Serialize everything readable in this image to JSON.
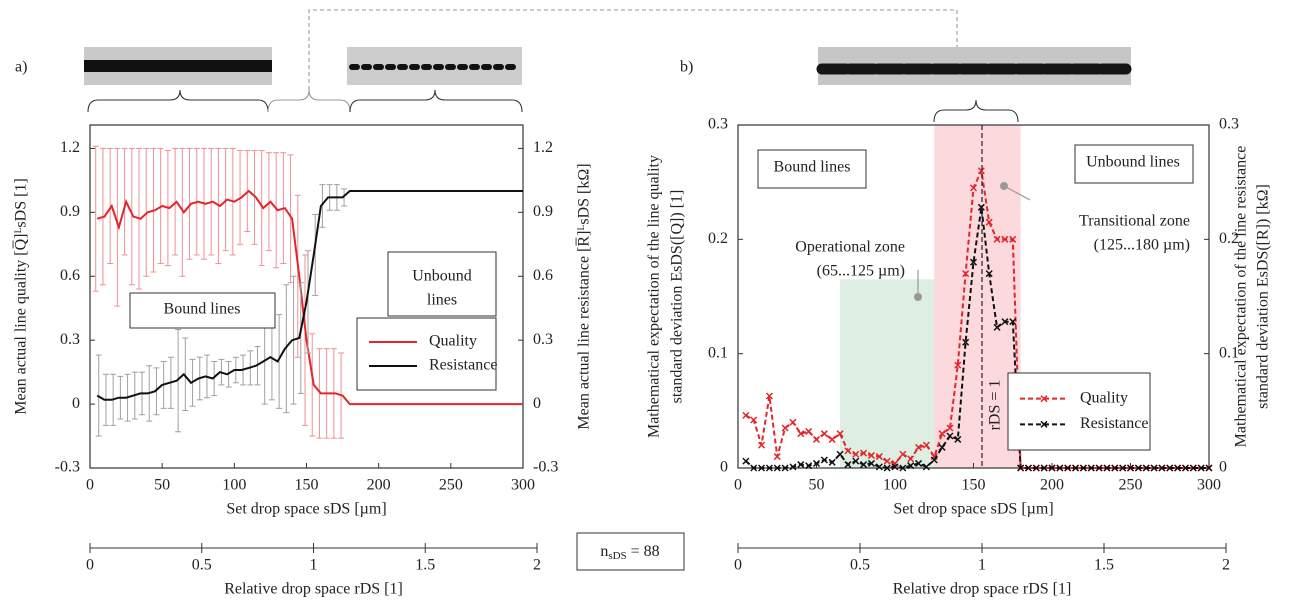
{
  "chart_data": [
    {
      "type": "line",
      "panel_label": "a)",
      "x": [
        5,
        10,
        15,
        20,
        25,
        30,
        35,
        40,
        45,
        50,
        55,
        60,
        65,
        70,
        75,
        80,
        85,
        90,
        95,
        100,
        105,
        110,
        115,
        120,
        125,
        130,
        135,
        140,
        145,
        150,
        155,
        160,
        165,
        170,
        175,
        180,
        300
      ],
      "xlim": [
        0,
        300
      ],
      "xticks": [
        0,
        50,
        100,
        150,
        200,
        250,
        300
      ],
      "xlabel": "Set drop space sDS [µm]",
      "x2lim": [
        0,
        2
      ],
      "x2ticks": [
        0,
        0.5,
        1,
        1.5,
        2
      ],
      "x2label": "Relative drop space rDS [1]",
      "ylim": [
        -0.3,
        1.31
      ],
      "yticks": [
        -0.3,
        0,
        0.3,
        0.6,
        0.9,
        1.2
      ],
      "ylabel": "Mean actual line quality [Q̅]ᴸsDS [1]",
      "y2lim": [
        -0.3,
        1.31
      ],
      "y2ticks": [
        -0.3,
        0,
        0.3,
        0.6,
        0.9,
        1.2
      ],
      "y2label": "Mean actual line resistance [R̅]ᴸsDS [kΩ]",
      "legend": "right",
      "series": [
        {
          "name": "Quality",
          "color": "#e3262b",
          "error_color": "#f09090",
          "values": [
            0.87,
            0.88,
            0.93,
            0.83,
            0.95,
            0.88,
            0.87,
            0.9,
            0.91,
            0.93,
            0.92,
            0.95,
            0.9,
            0.94,
            0.95,
            0.94,
            0.95,
            0.93,
            0.96,
            0.95,
            0.97,
            1.0,
            0.97,
            0.92,
            0.95,
            0.91,
            0.92,
            0.87,
            0.6,
            0.3,
            0.09,
            0.05,
            0.05,
            0.05,
            0.04,
            0,
            0
          ],
          "errors": [
            0.34,
            0.32,
            0.27,
            0.37,
            0.25,
            0.32,
            0.33,
            0.3,
            0.29,
            0.27,
            0.27,
            0.25,
            0.3,
            0.26,
            0.25,
            0.26,
            0.25,
            0.27,
            0.24,
            0.25,
            0.22,
            0.19,
            0.22,
            0.27,
            0.23,
            0.27,
            0.26,
            0.3,
            0.38,
            0.4,
            0.24,
            0.21,
            0.21,
            0.21,
            0.2,
            null,
            null
          ]
        },
        {
          "name": "Resistance",
          "color": "#111111",
          "error_color": "#a0a0a0",
          "axis": "y2",
          "values": [
            0.04,
            0.02,
            0.02,
            0.03,
            0.03,
            0.04,
            0.05,
            0.05,
            0.06,
            0.09,
            0.1,
            0.11,
            0.14,
            0.1,
            0.12,
            0.13,
            0.12,
            0.15,
            0.14,
            0.16,
            0.16,
            0.17,
            0.18,
            0.2,
            0.22,
            0.2,
            0.26,
            0.3,
            0.31,
            0.48,
            0.7,
            0.93,
            0.97,
            0.97,
            0.97,
            1.0,
            1.0
          ],
          "errors": [
            0.19,
            0.12,
            0.12,
            0.1,
            0.11,
            0.11,
            0.1,
            0.13,
            0.11,
            0.11,
            0.12,
            0.24,
            0.17,
            0.11,
            0.1,
            0.1,
            0.08,
            0.06,
            0.06,
            0.06,
            0.07,
            0.08,
            0.09,
            0.2,
            0.2,
            0.22,
            0.3,
            0.3,
            0.26,
            0.24,
            0.19,
            0.1,
            0.06,
            0.06,
            0.04,
            null,
            null
          ]
        }
      ],
      "annotations": [
        {
          "lines": [
            "Bound lines"
          ],
          "boxed": true
        },
        {
          "lines": [
            "Unbound",
            "lines"
          ],
          "boxed": true
        }
      ]
    },
    {
      "type": "line",
      "panel_label": "b)",
      "x": [
        5,
        10,
        15,
        20,
        25,
        30,
        35,
        40,
        45,
        50,
        55,
        60,
        65,
        70,
        75,
        80,
        85,
        90,
        95,
        100,
        105,
        110,
        115,
        120,
        125,
        130,
        135,
        140,
        145,
        150,
        155,
        160,
        165,
        170,
        175,
        180,
        185,
        190,
        195,
        200,
        205,
        210,
        215,
        220,
        225,
        230,
        235,
        240,
        245,
        250,
        255,
        260,
        265,
        270,
        275,
        280,
        285,
        290,
        295,
        300
      ],
      "xlim": [
        0,
        300
      ],
      "xticks": [
        0,
        50,
        100,
        150,
        200,
        250,
        300
      ],
      "xlabel": "Set drop space sDS [µm]",
      "x2lim": [
        0,
        2
      ],
      "x2ticks": [
        0,
        0.5,
        1,
        1.5,
        2
      ],
      "x2label": "Relative drop space rDS [1]",
      "ylim": [
        0,
        0.3
      ],
      "yticks": [
        0,
        0.1,
        0.2,
        0.3
      ],
      "ylabel": [
        "Mathematical expectation of the line quality",
        "standard deviation EsDS([Q]) [1]"
      ],
      "y2lim": [
        0,
        0.3
      ],
      "y2ticks": [
        0,
        0.1,
        0.2,
        0.3
      ],
      "y2label": [
        "Mathematical expectation of the line resistance",
        "standard deviation EsDS([R]) [kΩ]"
      ],
      "legend": "lower right",
      "zones": [
        {
          "x": [
            65,
            125
          ],
          "top": 0.165,
          "color": "#dcefe2"
        },
        {
          "x": [
            125,
            180
          ],
          "top": 0.3,
          "color": "#fbd9dc"
        }
      ],
      "series": [
        {
          "name": "Quality",
          "color": "#e3262b",
          "line_style": "dashed",
          "marker": "x",
          "values": [
            0.046,
            0.042,
            0.02,
            0.063,
            0.01,
            0.035,
            0.04,
            0.03,
            0.032,
            0.025,
            0.03,
            0.025,
            0.03,
            0.015,
            0.012,
            0.013,
            0.011,
            0.01,
            0.006,
            0.004,
            0.012,
            0.008,
            0.018,
            0.02,
            0.01,
            0.03,
            0.035,
            0.09,
            0.17,
            0.245,
            0.26,
            0.215,
            0.2,
            0.2,
            0.2,
            0,
            0,
            0,
            0,
            0,
            0,
            0,
            0,
            0,
            0,
            0,
            0,
            0,
            0,
            0,
            0,
            0,
            0,
            0,
            0,
            0,
            0,
            0,
            0,
            0
          ]
        },
        {
          "name": "Resistance",
          "color": "#111111",
          "line_style": "dashed",
          "marker": "x",
          "axis": "y2",
          "values": [
            0.006,
            0,
            0,
            0,
            0,
            0,
            0.001,
            0.003,
            0.002,
            0.004,
            0.007,
            0.005,
            0.012,
            0.003,
            0.006,
            0.003,
            0.004,
            0.001,
            0,
            0.001,
            0,
            0.002,
            0.004,
            0.001,
            0.007,
            0.018,
            0.028,
            0.025,
            0.11,
            0.18,
            0.228,
            0.17,
            0.123,
            0.128,
            0.128,
            0,
            0,
            0,
            0,
            0,
            0,
            0,
            0,
            0,
            0,
            0,
            0,
            0,
            0,
            0,
            0,
            0,
            0,
            0,
            0,
            0,
            0,
            0,
            0,
            0
          ]
        }
      ],
      "annotations": [
        {
          "lines": [
            "Bound lines"
          ],
          "boxed": true
        },
        {
          "lines": [
            "Unbound lines"
          ],
          "boxed": true
        },
        {
          "lines": [
            "Operational zone",
            "(65...125 µm)"
          ]
        },
        {
          "lines": [
            "Transitional zone",
            "(125...180 µm)"
          ]
        },
        {
          "lines": [
            "rDS = 1"
          ],
          "x2": 1
        }
      ]
    }
  ],
  "sample_size": {
    "symbol": "n",
    "subscript": "sDS",
    "text": " = 88"
  }
}
